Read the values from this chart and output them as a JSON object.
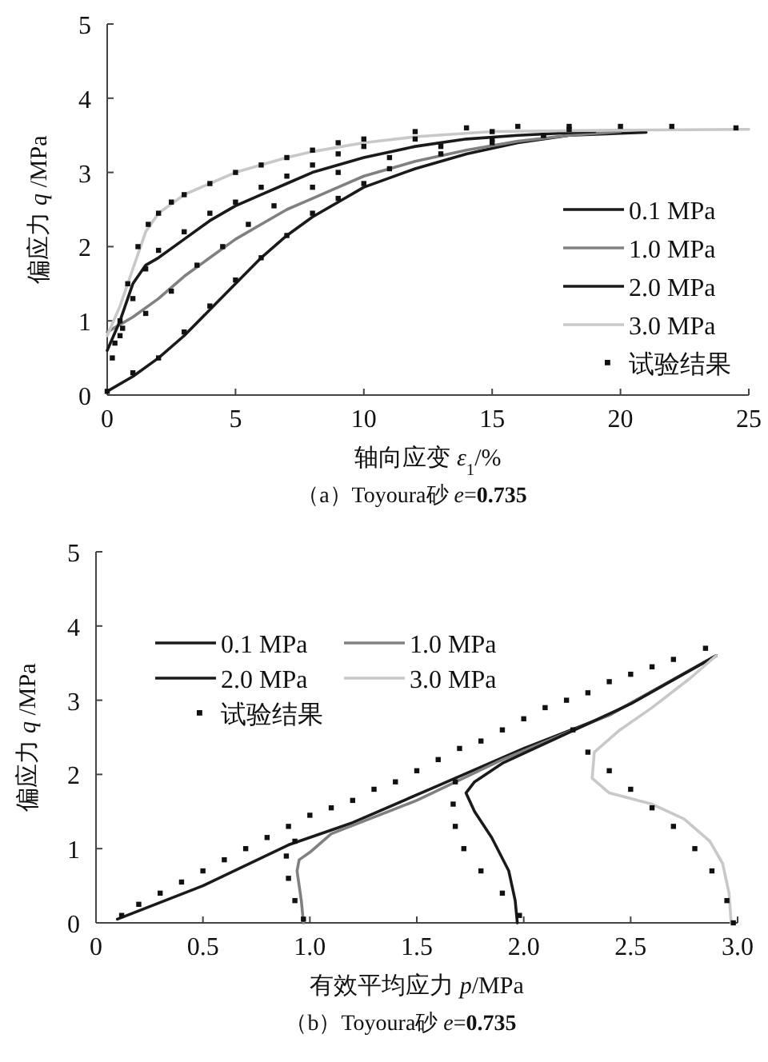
{
  "chart_data": [
    {
      "type": "line",
      "ylabel": "偏应力 *q* /MPa",
      "xlabel": "轴向应变 *ε*$_{1}$/%",
      "annotations": [
        "（a）Toyoura砂 *e*=**0.735**"
      ],
      "xlim": [
        0,
        25
      ],
      "ylim": [
        0,
        5
      ],
      "xticks": [
        0,
        5,
        10,
        15,
        20,
        25
      ],
      "yticks": [
        0,
        1,
        2,
        3,
        4,
        5
      ],
      "grid": false,
      "legend": "right",
      "marker": "none",
      "line_style": "solid",
      "series": [
        {
          "name": "0.1 MPa",
          "color": "#1a1a1a",
          "x": [
            0,
            1,
            2,
            3,
            4,
            5,
            6,
            7,
            8,
            9,
            10,
            12,
            14,
            16,
            18,
            21
          ],
          "values": [
            0.05,
            0.25,
            0.5,
            0.8,
            1.15,
            1.5,
            1.85,
            2.15,
            2.4,
            2.6,
            2.8,
            3.05,
            3.25,
            3.4,
            3.5,
            3.54
          ]
        },
        {
          "name": "1.0 MPa",
          "color": "#808080",
          "x": [
            0,
            0.5,
            1,
            2,
            3,
            4,
            5,
            6,
            7,
            8,
            9,
            10,
            12,
            14,
            16,
            18,
            20
          ],
          "values": [
            0.85,
            0.95,
            1.05,
            1.3,
            1.6,
            1.85,
            2.1,
            2.3,
            2.5,
            2.65,
            2.8,
            2.95,
            3.15,
            3.3,
            3.42,
            3.5,
            3.55
          ]
        },
        {
          "name": "2.0 MPa",
          "color": "#1a1a1a",
          "x": [
            0,
            0.5,
            1,
            1.5,
            2,
            3,
            4,
            5,
            6,
            7,
            8,
            9,
            10,
            12,
            14,
            16,
            19
          ],
          "values": [
            0.6,
            1.0,
            1.5,
            1.75,
            1.85,
            2.1,
            2.35,
            2.55,
            2.7,
            2.85,
            3.0,
            3.1,
            3.2,
            3.35,
            3.45,
            3.5,
            3.55
          ]
        },
        {
          "name": "3.0 MPa",
          "color": "#c8c8c8",
          "x": [
            0,
            0.5,
            1,
            1.5,
            2,
            3,
            4,
            5,
            6,
            7,
            8,
            10,
            12,
            15,
            20,
            25
          ],
          "values": [
            0.8,
            1.2,
            1.7,
            2.2,
            2.45,
            2.7,
            2.85,
            3.0,
            3.1,
            3.2,
            3.28,
            3.4,
            3.48,
            3.55,
            3.57,
            3.58
          ]
        },
        {
          "name": "试验结果",
          "type": "scatter",
          "marker": "square",
          "color": "#111111",
          "x": [
            0.3,
            0.5,
            0.8,
            1.2,
            1.6,
            2,
            2.5,
            3,
            4,
            5,
            6,
            7,
            8,
            9,
            10,
            12,
            14,
            16,
            18,
            20,
            22,
            24.5,
            0.2,
            0.6,
            1,
            1.5,
            2,
            3,
            4,
            5,
            6,
            7,
            8,
            9,
            10,
            12,
            15,
            18,
            0.5,
            1.5,
            2.5,
            3.5,
            4.5,
            5.5,
            6.5,
            8,
            9,
            11,
            13,
            15,
            17,
            0,
            1,
            2,
            3,
            4,
            5,
            6,
            7,
            8,
            9,
            10,
            11,
            13,
            15,
            17
          ],
          "values": [
            0.7,
            1.0,
            1.5,
            2.0,
            2.3,
            2.45,
            2.6,
            2.7,
            2.85,
            3.0,
            3.1,
            3.2,
            3.3,
            3.4,
            3.45,
            3.55,
            3.6,
            3.62,
            3.62,
            3.62,
            3.62,
            3.6,
            0.5,
            0.9,
            1.3,
            1.7,
            1.95,
            2.2,
            2.45,
            2.6,
            2.8,
            2.95,
            3.1,
            3.25,
            3.35,
            3.45,
            3.55,
            3.58,
            0.8,
            1.1,
            1.4,
            1.75,
            2.0,
            2.3,
            2.55,
            2.8,
            3.0,
            3.2,
            3.35,
            3.45,
            3.5,
            0.05,
            0.3,
            0.5,
            0.85,
            1.2,
            1.55,
            1.85,
            2.15,
            2.45,
            2.65,
            2.85,
            3.05,
            3.25,
            3.4,
            3.5
          ]
        }
      ]
    },
    {
      "type": "line",
      "ylabel": "偏应力 *q* /MPa",
      "xlabel": "有效平均应力 *p*/MPa",
      "annotations": [
        "（b）Toyoura砂 *e*=**0.735**"
      ],
      "xlim": [
        0,
        3
      ],
      "ylim": [
        0,
        5
      ],
      "xticks": [
        0,
        0.5,
        {
          "value": 1,
          "label": "1.0"
        },
        1.5,
        {
          "value": 2,
          "label": "2.0"
        },
        2.5,
        {
          "value": 3,
          "label": "3.0"
        }
      ],
      "yticks": [
        0,
        1,
        2,
        3,
        4,
        5
      ],
      "grid": false,
      "legend": "top left",
      "marker": "none",
      "line_style": "solid",
      "series": [
        {
          "name": "0.1 MPa",
          "color": "#1a1a1a",
          "x": [
            0.1,
            0.5,
            0.9,
            1.2,
            1.6,
            2.0,
            2.4,
            2.9
          ],
          "values": [
            0.05,
            0.5,
            1.05,
            1.35,
            1.85,
            2.35,
            2.8,
            3.6
          ]
        },
        {
          "name": "1.0 MPa",
          "color": "#808080",
          "x": [
            0.97,
            0.96,
            0.94,
            0.95,
            1.0,
            1.1,
            1.5,
            1.9,
            2.4,
            2.9
          ],
          "values": [
            0,
            0.3,
            0.7,
            0.85,
            0.95,
            1.2,
            1.65,
            2.2,
            2.8,
            3.6
          ]
        },
        {
          "name": "2.0 MPa",
          "color": "#1a1a1a",
          "x": [
            1.97,
            1.96,
            1.93,
            1.85,
            1.77,
            1.73,
            1.77,
            1.9,
            2.2,
            2.5,
            2.9
          ],
          "values": [
            0,
            0.3,
            0.7,
            1.15,
            1.5,
            1.75,
            1.9,
            2.15,
            2.55,
            2.95,
            3.6
          ]
        },
        {
          "name": "3.0 MPa",
          "color": "#c8c8c8",
          "x": [
            2.97,
            2.96,
            2.93,
            2.87,
            2.75,
            2.6,
            2.4,
            2.32,
            2.33,
            2.45,
            2.6,
            2.78,
            2.9
          ],
          "values": [
            0,
            0.4,
            0.8,
            1.1,
            1.4,
            1.6,
            1.75,
            1.95,
            2.3,
            2.6,
            2.9,
            3.3,
            3.6
          ]
        },
        {
          "name": "试验结果",
          "type": "scatter",
          "marker": "square",
          "color": "#111111",
          "x": [
            0.12,
            0.2,
            0.3,
            0.4,
            0.5,
            0.6,
            0.7,
            0.8,
            0.9,
            1.0,
            1.1,
            1.2,
            1.3,
            1.4,
            1.5,
            1.6,
            1.7,
            1.8,
            1.9,
            2.0,
            2.1,
            2.2,
            2.3,
            2.4,
            2.5,
            2.6,
            2.7,
            2.85,
            0.97,
            0.93,
            0.9,
            0.89,
            0.93,
            1.98,
            1.9,
            1.8,
            1.72,
            1.68,
            1.67,
            1.68,
            2.98,
            2.95,
            2.88,
            2.8,
            2.7,
            2.6,
            2.5,
            2.4,
            2.3,
            2.23
          ],
          "values": [
            0.1,
            0.25,
            0.4,
            0.55,
            0.7,
            0.85,
            1.0,
            1.15,
            1.3,
            1.45,
            1.55,
            1.65,
            1.8,
            1.9,
            2.05,
            2.2,
            2.35,
            2.45,
            2.6,
            2.75,
            2.9,
            3.0,
            3.1,
            3.25,
            3.35,
            3.45,
            3.55,
            3.7,
            0.05,
            0.3,
            0.6,
            0.9,
            1.1,
            0.1,
            0.4,
            0.7,
            1.0,
            1.3,
            1.6,
            1.9,
            0,
            0.3,
            0.7,
            1.0,
            1.3,
            1.55,
            1.8,
            2.05,
            2.3,
            2.6
          ]
        }
      ]
    }
  ]
}
